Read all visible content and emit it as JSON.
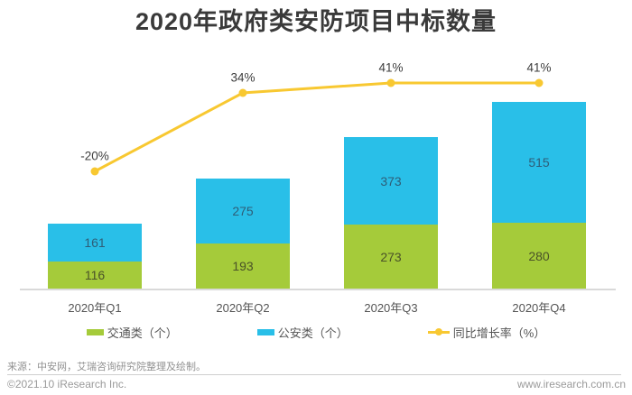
{
  "title": "2020年政府类安防项目中标数量",
  "chart_data": {
    "type": "bar",
    "subtype": "stacked-bars-with-growth-line",
    "categories": [
      "2020年Q1",
      "2020年Q2",
      "2020年Q3",
      "2020年Q4"
    ],
    "series": [
      {
        "name": "交通类（个）",
        "type": "bar",
        "stack": "total",
        "color": "#A5CB3A",
        "values": [
          116,
          193,
          273,
          280
        ]
      },
      {
        "name": "公安类（个）",
        "type": "bar",
        "stack": "total",
        "color": "#29BFE8",
        "values": [
          161,
          275,
          373,
          515
        ]
      },
      {
        "name": "同比增长率（%）",
        "type": "line",
        "color": "#F8C831",
        "values": [
          -20,
          34,
          41,
          41
        ],
        "point_labels": [
          "-20%",
          "34%",
          "41%",
          "41%"
        ]
      }
    ],
    "stack_totals": [
      277,
      468,
      646,
      795
    ],
    "value_labels_shown": true,
    "grid": false,
    "legend_position": "bottom"
  },
  "footer": {
    "source": "来源：中安网，艾瑞咨询研究院整理及绘制。",
    "copyright": "©2021.10 iResearch Inc.",
    "website": "www.iresearch.com.cn"
  },
  "colors": {
    "traffic_green": "#A5CB3A",
    "police_blue": "#29BFE8",
    "growth_yellow": "#F8C831",
    "title_text": "#3A3A3A",
    "axis_line": "#D9D9D9",
    "tick_text": "#555555"
  }
}
